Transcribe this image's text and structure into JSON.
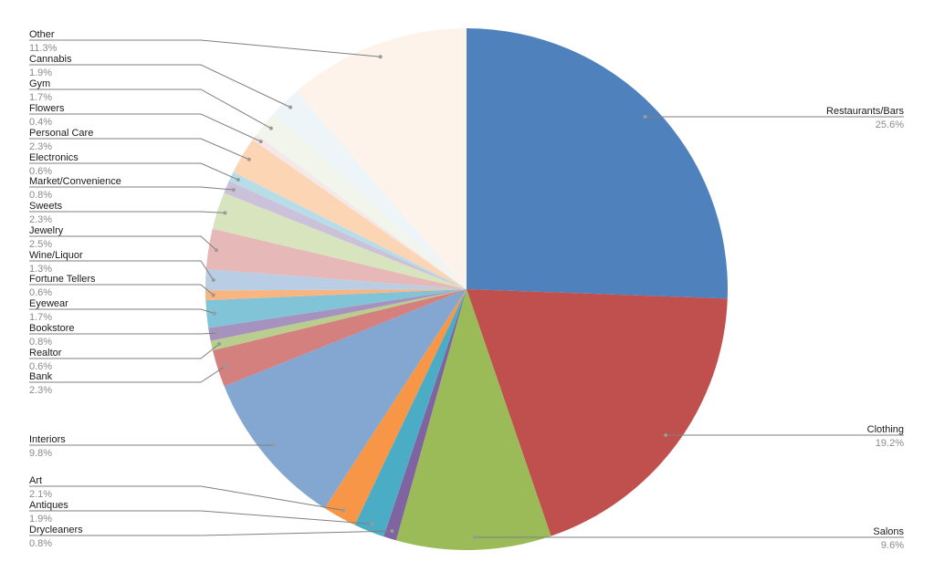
{
  "chart_data": {
    "type": "pie",
    "start_angle": "12 o'clock",
    "direction": "clockwise",
    "label_format": "category name with percentage below",
    "slices": [
      {
        "label": "Restaurants/Bars",
        "value": 25.6,
        "pct": "25.6%",
        "color": "#4F81BD",
        "side": "right"
      },
      {
        "label": "Clothing",
        "value": 19.2,
        "pct": "19.2%",
        "color": "#C0504D",
        "side": "right"
      },
      {
        "label": "Salons",
        "value": 9.6,
        "pct": "9.6%",
        "color": "#9BBB59",
        "side": "right"
      },
      {
        "label": "Drycleaners",
        "value": 0.8,
        "pct": "0.8%",
        "color": "#8064A2",
        "side": "left"
      },
      {
        "label": "Antiques",
        "value": 1.9,
        "pct": "1.9%",
        "color": "#4BACC6",
        "side": "left"
      },
      {
        "label": "Art",
        "value": 2.1,
        "pct": "2.1%",
        "color": "#F79646",
        "side": "left"
      },
      {
        "label": "Interiors",
        "value": 9.8,
        "pct": "9.8%",
        "color": "#84A7D1",
        "side": "left"
      },
      {
        "label": "Bank",
        "value": 2.3,
        "pct": "2.3%",
        "color": "#D3807E",
        "side": "left"
      },
      {
        "label": "Realtor",
        "value": 0.6,
        "pct": "0.6%",
        "color": "#B9CD8E",
        "side": "left"
      },
      {
        "label": "Bookstore",
        "value": 0.8,
        "pct": "0.8%",
        "color": "#A692BF",
        "side": "left"
      },
      {
        "label": "Eyewear",
        "value": 1.7,
        "pct": "1.7%",
        "color": "#81C4D8",
        "side": "left"
      },
      {
        "label": "Fortune Tellers",
        "value": 0.6,
        "pct": "0.6%",
        "color": "#F9B580",
        "side": "left"
      },
      {
        "label": "Wine/Liquor",
        "value": 1.3,
        "pct": "1.3%",
        "color": "#B9CDE5",
        "side": "left"
      },
      {
        "label": "Jewelry",
        "value": 2.5,
        "pct": "2.5%",
        "color": "#E6B9B8",
        "side": "left"
      },
      {
        "label": "Sweets",
        "value": 2.3,
        "pct": "2.3%",
        "color": "#D7E4BD",
        "side": "left"
      },
      {
        "label": "Market/Convenience",
        "value": 0.8,
        "pct": "0.8%",
        "color": "#CCC1DA",
        "side": "left"
      },
      {
        "label": "Electronics",
        "value": 0.6,
        "pct": "0.6%",
        "color": "#B7DEE8",
        "side": "left"
      },
      {
        "label": "Personal Care",
        "value": 2.3,
        "pct": "2.3%",
        "color": "#FCD5B5",
        "side": "left"
      },
      {
        "label": "Flowers",
        "value": 0.4,
        "pct": "0.4%",
        "color": "#F4E8E8",
        "side": "left"
      },
      {
        "label": "Gym",
        "value": 1.7,
        "pct": "1.7%",
        "color": "#F2F5EB",
        "side": "left"
      },
      {
        "label": "Cannabis",
        "value": 1.9,
        "pct": "1.9%",
        "color": "#EDF5F8",
        "side": "left"
      },
      {
        "label": "Other",
        "value": 11.3,
        "pct": "11.3%",
        "color": "#FDF3EA",
        "side": "left"
      }
    ]
  }
}
